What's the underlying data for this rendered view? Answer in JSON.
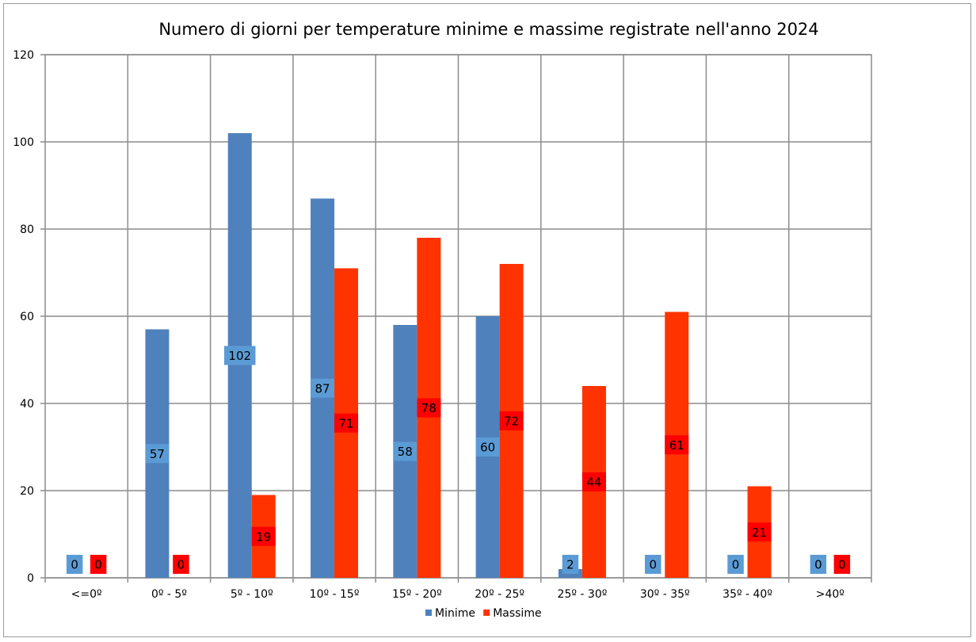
{
  "chart_data": {
    "type": "bar",
    "title": "Numero di giorni per temperature minime e massime registrate nell'anno 2024",
    "xlabel": "",
    "ylabel": "",
    "categories": [
      "<=0º",
      "0º - 5º",
      "5º - 10º",
      "10º - 15º",
      "15º - 20º",
      "20º - 25º",
      "25º - 30º",
      "30º - 35º",
      "35º - 40º",
      ">40º"
    ],
    "series": [
      {
        "name": "Minime",
        "values": [
          0,
          57,
          102,
          87,
          58,
          60,
          2,
          0,
          0,
          0
        ],
        "color": "#4f81bd",
        "label_bg": "#5b9bd5"
      },
      {
        "name": "Massime",
        "values": [
          0,
          0,
          19,
          71,
          78,
          72,
          44,
          61,
          21,
          0
        ],
        "color": "#ff3300",
        "label_bg": "#ff0000"
      }
    ],
    "ylim": [
      0,
      120
    ],
    "yticks": [
      0,
      20,
      40,
      60,
      80,
      100,
      120
    ],
    "grid": true,
    "legend_position": "bottom"
  }
}
